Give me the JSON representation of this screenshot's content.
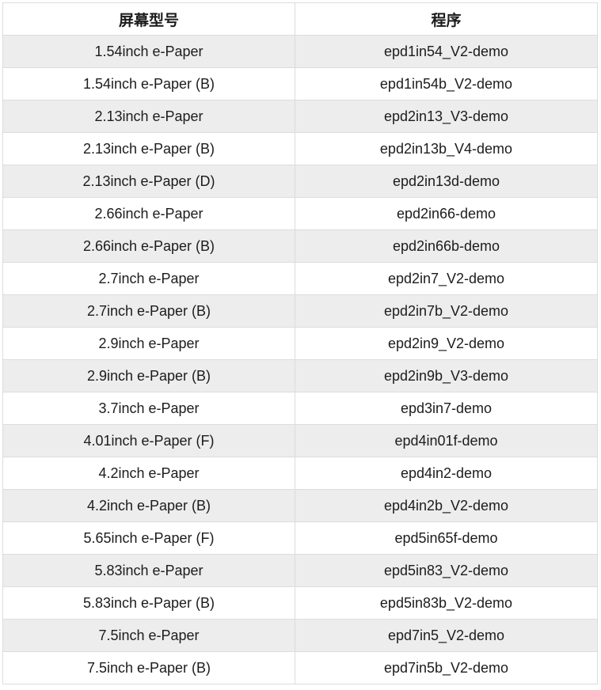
{
  "colors": {
    "row_alt_background": "#ededed",
    "row_background": "#ffffff",
    "border": "#dcdcdc",
    "text": "#1c1c1c"
  },
  "table": {
    "headers": [
      {
        "label": "屏幕型号"
      },
      {
        "label": "程序"
      }
    ],
    "rows": [
      {
        "model": "1.54inch e-Paper",
        "program": "epd1in54_V2-demo"
      },
      {
        "model": "1.54inch e-Paper (B)",
        "program": "epd1in54b_V2-demo"
      },
      {
        "model": "2.13inch e-Paper",
        "program": "epd2in13_V3-demo"
      },
      {
        "model": "2.13inch e-Paper (B)",
        "program": "epd2in13b_V4-demo"
      },
      {
        "model": "2.13inch e-Paper (D)",
        "program": "epd2in13d-demo"
      },
      {
        "model": "2.66inch e-Paper",
        "program": "epd2in66-demo"
      },
      {
        "model": "2.66inch e-Paper (B)",
        "program": "epd2in66b-demo"
      },
      {
        "model": "2.7inch e-Paper",
        "program": "epd2in7_V2-demo"
      },
      {
        "model": "2.7inch e-Paper (B)",
        "program": "epd2in7b_V2-demo"
      },
      {
        "model": "2.9inch e-Paper",
        "program": "epd2in9_V2-demo"
      },
      {
        "model": "2.9inch e-Paper (B)",
        "program": "epd2in9b_V3-demo"
      },
      {
        "model": "3.7inch e-Paper",
        "program": "epd3in7-demo"
      },
      {
        "model": "4.01inch e-Paper (F)",
        "program": "epd4in01f-demo"
      },
      {
        "model": "4.2inch e-Paper",
        "program": "epd4in2-demo"
      },
      {
        "model": "4.2inch e-Paper (B)",
        "program": "epd4in2b_V2-demo"
      },
      {
        "model": "5.65inch e-Paper (F)",
        "program": "epd5in65f-demo"
      },
      {
        "model": "5.83inch e-Paper",
        "program": "epd5in83_V2-demo"
      },
      {
        "model": "5.83inch e-Paper (B)",
        "program": "epd5in83b_V2-demo"
      },
      {
        "model": "7.5inch e-Paper",
        "program": "epd7in5_V2-demo"
      },
      {
        "model": "7.5inch e-Paper (B)",
        "program": "epd7in5b_V2-demo"
      }
    ]
  }
}
